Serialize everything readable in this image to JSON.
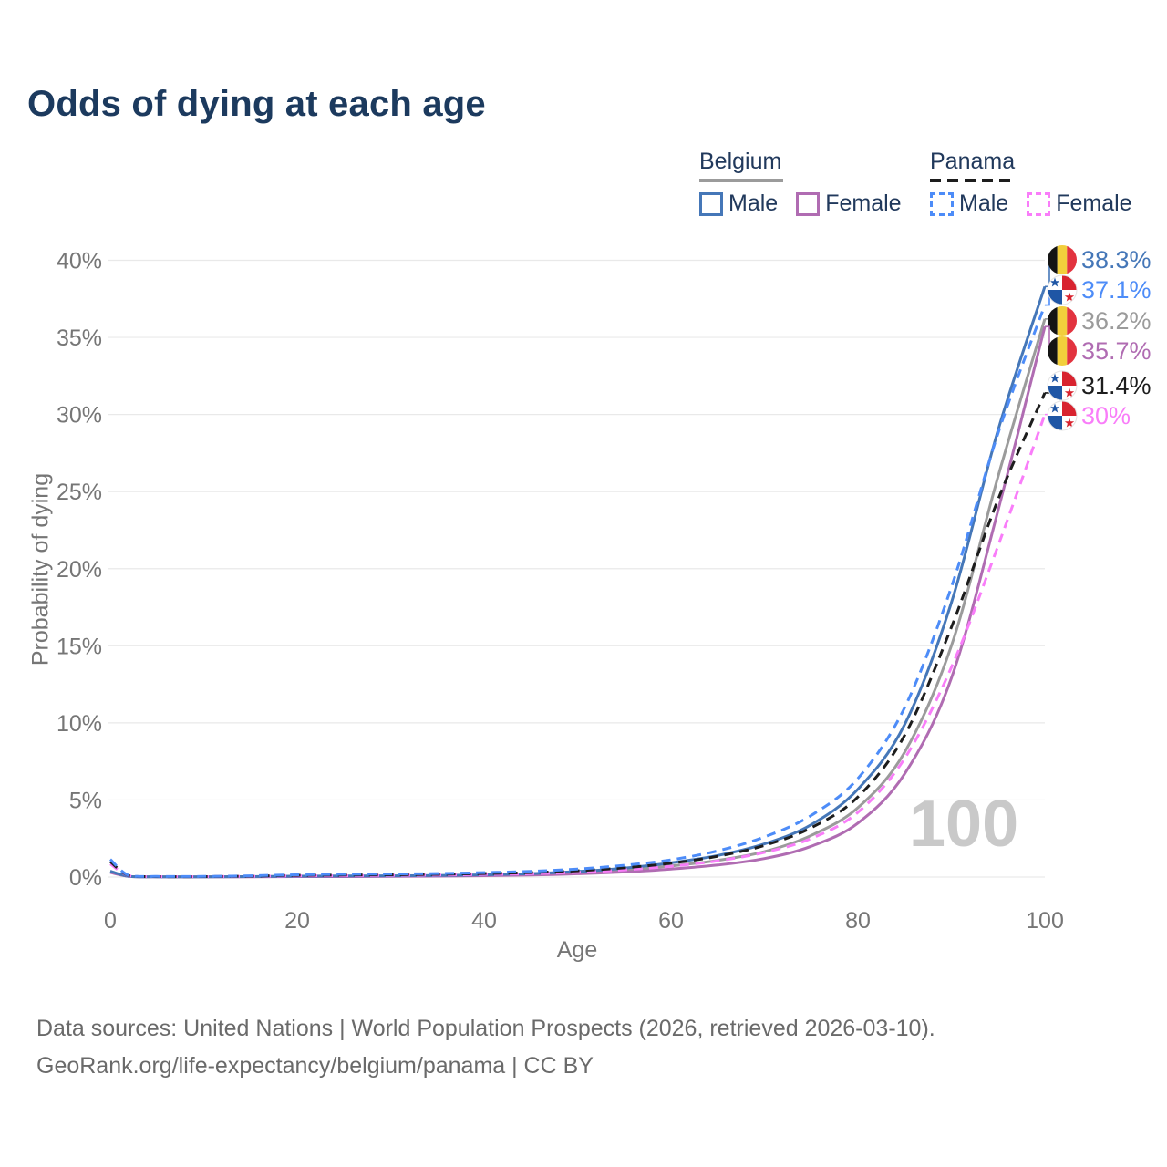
{
  "title": "Odds of dying at each age",
  "watermark": "100",
  "legend": {
    "groups": [
      {
        "name": "Belgium",
        "line_style": "solid",
        "underline_series": "belgium-both",
        "items": [
          {
            "label": "Male",
            "series": "belgium-male"
          },
          {
            "label": "Female",
            "series": "belgium-female"
          }
        ]
      },
      {
        "name": "Panama",
        "line_style": "dashed",
        "underline_series": "panama-both",
        "items": [
          {
            "label": "Male",
            "series": "panama-male"
          },
          {
            "label": "Female",
            "series": "panama-female"
          }
        ]
      }
    ]
  },
  "chart_data": {
    "type": "line",
    "xlabel": "Age",
    "ylabel": "Probability of dying",
    "xlim": [
      0,
      100
    ],
    "ylim": [
      0,
      40
    ],
    "x_ticks": [
      0,
      20,
      40,
      60,
      80,
      100
    ],
    "y_ticks": [
      0,
      5,
      10,
      15,
      20,
      25,
      30,
      35,
      40
    ],
    "grid": "horizontal",
    "legend_position": "top-right",
    "y_unit": "%",
    "series": [
      {
        "id": "belgium-both",
        "name": "Belgium (both sexes)",
        "country": "Belgium",
        "flag": "belgium",
        "color": "#9b9b9b",
        "dashed": false,
        "end_label": "36.2%",
        "end_value": 36.2,
        "points": [
          [
            0,
            0.34
          ],
          [
            2,
            0.05
          ],
          [
            5,
            0.02
          ],
          [
            10,
            0.02
          ],
          [
            15,
            0.03
          ],
          [
            20,
            0.05
          ],
          [
            25,
            0.05
          ],
          [
            30,
            0.06
          ],
          [
            35,
            0.08
          ],
          [
            40,
            0.12
          ],
          [
            45,
            0.18
          ],
          [
            50,
            0.28
          ],
          [
            55,
            0.45
          ],
          [
            60,
            0.72
          ],
          [
            65,
            1.08
          ],
          [
            70,
            1.65
          ],
          [
            75,
            2.7
          ],
          [
            80,
            4.5
          ],
          [
            85,
            8.1
          ],
          [
            90,
            15.0
          ],
          [
            95,
            26.0
          ],
          [
            100,
            36.2
          ]
        ]
      },
      {
        "id": "belgium-female",
        "name": "Belgium Female",
        "country": "Belgium",
        "flag": "belgium",
        "color": "#b06cb2",
        "dashed": false,
        "end_label": "35.7%",
        "end_value": 35.7,
        "points": [
          [
            0,
            0.3
          ],
          [
            2,
            0.04
          ],
          [
            5,
            0.01
          ],
          [
            10,
            0.01
          ],
          [
            15,
            0.02
          ],
          [
            20,
            0.03
          ],
          [
            25,
            0.03
          ],
          [
            30,
            0.04
          ],
          [
            35,
            0.06
          ],
          [
            40,
            0.09
          ],
          [
            45,
            0.13
          ],
          [
            50,
            0.21
          ],
          [
            55,
            0.33
          ],
          [
            60,
            0.52
          ],
          [
            65,
            0.78
          ],
          [
            70,
            1.2
          ],
          [
            75,
            2.0
          ],
          [
            80,
            3.5
          ],
          [
            85,
            6.7
          ],
          [
            90,
            12.9
          ],
          [
            95,
            23.8
          ],
          [
            100,
            35.7
          ]
        ]
      },
      {
        "id": "belgium-male",
        "name": "Belgium Male",
        "country": "Belgium",
        "flag": "belgium",
        "color": "#4577b8",
        "dashed": false,
        "end_label": "38.3%",
        "end_value": 38.3,
        "points": [
          [
            0,
            0.38
          ],
          [
            2,
            0.05
          ],
          [
            5,
            0.02
          ],
          [
            10,
            0.02
          ],
          [
            15,
            0.03
          ],
          [
            20,
            0.06
          ],
          [
            25,
            0.07
          ],
          [
            30,
            0.08
          ],
          [
            35,
            0.1
          ],
          [
            40,
            0.15
          ],
          [
            45,
            0.22
          ],
          [
            50,
            0.36
          ],
          [
            55,
            0.58
          ],
          [
            60,
            0.92
          ],
          [
            65,
            1.4
          ],
          [
            70,
            2.15
          ],
          [
            75,
            3.4
          ],
          [
            80,
            5.7
          ],
          [
            85,
            9.9
          ],
          [
            90,
            17.8
          ],
          [
            95,
            29.0
          ],
          [
            100,
            38.3
          ]
        ]
      },
      {
        "id": "panama-female",
        "name": "Panama Female",
        "country": "Panama",
        "flag": "panama",
        "color": "#f97df9",
        "dashed": true,
        "end_label": "30%",
        "end_value": 30.0,
        "points": [
          [
            0,
            0.85
          ],
          [
            2,
            0.08
          ],
          [
            5,
            0.03
          ],
          [
            10,
            0.03
          ],
          [
            15,
            0.05
          ],
          [
            20,
            0.08
          ],
          [
            25,
            0.09
          ],
          [
            30,
            0.11
          ],
          [
            35,
            0.13
          ],
          [
            40,
            0.17
          ],
          [
            45,
            0.22
          ],
          [
            50,
            0.31
          ],
          [
            55,
            0.47
          ],
          [
            60,
            0.7
          ],
          [
            65,
            1.05
          ],
          [
            70,
            1.6
          ],
          [
            75,
            2.5
          ],
          [
            80,
            4.2
          ],
          [
            85,
            7.7
          ],
          [
            90,
            13.6
          ],
          [
            95,
            21.5
          ],
          [
            100,
            30.0
          ]
        ]
      },
      {
        "id": "panama-both",
        "name": "Panama (both sexes)",
        "country": "Panama",
        "flag": "panama",
        "color": "#1d1d1d",
        "dashed": true,
        "end_label": "31.4%",
        "end_value": 31.4,
        "points": [
          [
            0,
            1.0
          ],
          [
            2,
            0.09
          ],
          [
            5,
            0.03
          ],
          [
            10,
            0.03
          ],
          [
            15,
            0.06
          ],
          [
            20,
            0.11
          ],
          [
            25,
            0.13
          ],
          [
            30,
            0.15
          ],
          [
            35,
            0.18
          ],
          [
            40,
            0.23
          ],
          [
            45,
            0.29
          ],
          [
            50,
            0.41
          ],
          [
            55,
            0.6
          ],
          [
            60,
            0.9
          ],
          [
            65,
            1.35
          ],
          [
            70,
            2.05
          ],
          [
            75,
            3.2
          ],
          [
            80,
            5.2
          ],
          [
            85,
            9.2
          ],
          [
            90,
            16.2
          ],
          [
            95,
            24.5
          ],
          [
            100,
            31.4
          ]
        ]
      },
      {
        "id": "panama-male",
        "name": "Panama Male",
        "country": "Panama",
        "flag": "panama",
        "color": "#4d8cf8",
        "dashed": true,
        "end_label": "37.1%",
        "end_value": 37.1,
        "points": [
          [
            0,
            1.15
          ],
          [
            2,
            0.1
          ],
          [
            5,
            0.04
          ],
          [
            10,
            0.04
          ],
          [
            15,
            0.08
          ],
          [
            20,
            0.15
          ],
          [
            25,
            0.18
          ],
          [
            30,
            0.2
          ],
          [
            35,
            0.23
          ],
          [
            40,
            0.29
          ],
          [
            45,
            0.37
          ],
          [
            50,
            0.52
          ],
          [
            55,
            0.76
          ],
          [
            60,
            1.12
          ],
          [
            65,
            1.7
          ],
          [
            70,
            2.6
          ],
          [
            75,
            4.0
          ],
          [
            80,
            6.4
          ],
          [
            85,
            11.0
          ],
          [
            90,
            18.8
          ],
          [
            95,
            28.8
          ],
          [
            100,
            37.1
          ]
        ]
      }
    ]
  },
  "footer": {
    "line1": "Data sources: United Nations | World Population Prospects (2026, retrieved 2026-03-10).",
    "line2": "GeoRank.org/life-expectancy/belgium/panama | CC BY"
  }
}
